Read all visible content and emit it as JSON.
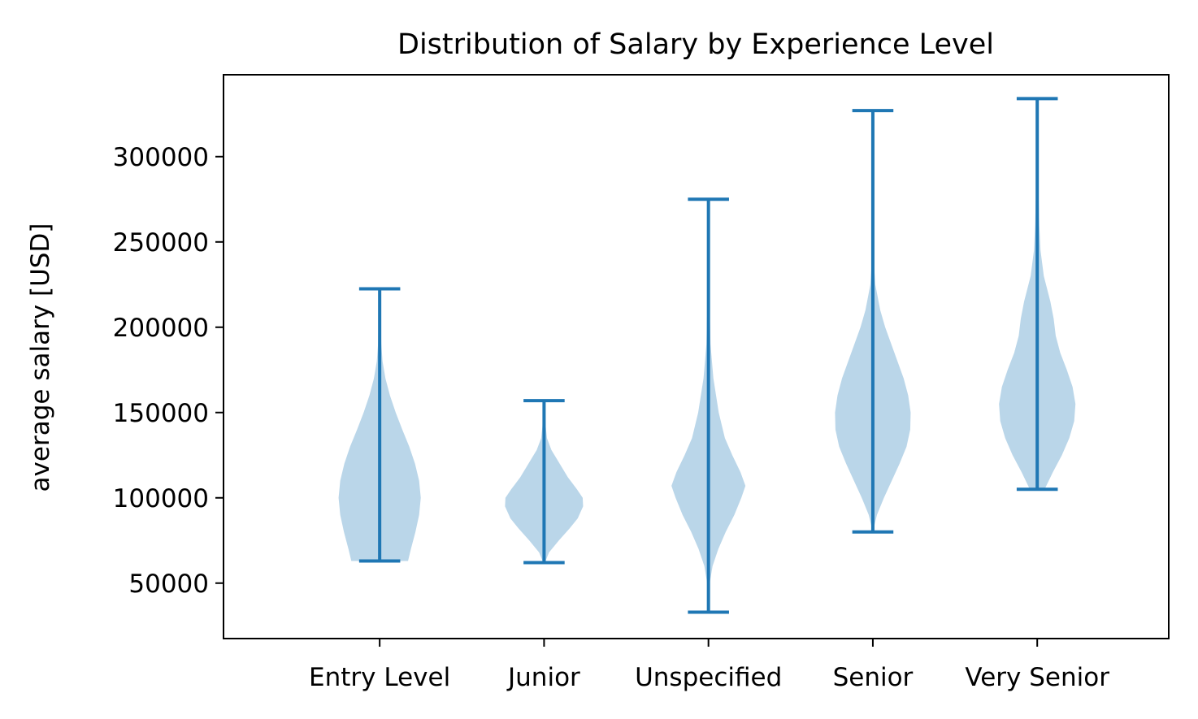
{
  "chart_data": {
    "type": "violin",
    "title": "Distribution of Salary by Experience Level",
    "xlabel": "",
    "ylabel": "average salary [USD]",
    "ylim": [
      17500,
      348000
    ],
    "yticks": [
      50000,
      100000,
      150000,
      200000,
      250000,
      300000
    ],
    "grid": false,
    "categories": [
      "Entry Level",
      "Junior",
      "Unspecified",
      "Senior",
      "Very Senior"
    ],
    "colors": {
      "body": "#bad6e9",
      "lines": "#1f77b4"
    },
    "violins": [
      {
        "category": "Entry Level",
        "min": 63000,
        "max": 222500,
        "density": [
          [
            63000,
            0.69
          ],
          [
            70000,
            0.76
          ],
          [
            80000,
            0.87
          ],
          [
            90000,
            0.96
          ],
          [
            100000,
            1.0
          ],
          [
            110000,
            0.96
          ],
          [
            120000,
            0.86
          ],
          [
            130000,
            0.72
          ],
          [
            140000,
            0.55
          ],
          [
            150000,
            0.39
          ],
          [
            160000,
            0.25
          ],
          [
            170000,
            0.14
          ],
          [
            180000,
            0.07
          ],
          [
            190000,
            0.04
          ],
          [
            200000,
            0.03
          ],
          [
            210000,
            0.03
          ],
          [
            222500,
            0.03
          ]
        ]
      },
      {
        "category": "Junior",
        "min": 62000,
        "max": 157000,
        "density": [
          [
            62000,
            0.02
          ],
          [
            68000,
            0.12
          ],
          [
            75000,
            0.36
          ],
          [
            82000,
            0.62
          ],
          [
            88000,
            0.82
          ],
          [
            95000,
            0.95
          ],
          [
            100000,
            0.94
          ],
          [
            105000,
            0.8
          ],
          [
            112000,
            0.58
          ],
          [
            120000,
            0.38
          ],
          [
            128000,
            0.18
          ],
          [
            135000,
            0.07
          ],
          [
            142000,
            0.04
          ],
          [
            150000,
            0.03
          ],
          [
            157000,
            0.03
          ]
        ]
      },
      {
        "category": "Unspecified",
        "min": 33000,
        "max": 275000,
        "density": [
          [
            33000,
            0.0
          ],
          [
            50000,
            0.03
          ],
          [
            60000,
            0.1
          ],
          [
            70000,
            0.24
          ],
          [
            80000,
            0.42
          ],
          [
            90000,
            0.63
          ],
          [
            100000,
            0.8
          ],
          [
            107000,
            0.9
          ],
          [
            115000,
            0.78
          ],
          [
            125000,
            0.58
          ],
          [
            135000,
            0.4
          ],
          [
            150000,
            0.25
          ],
          [
            170000,
            0.12
          ],
          [
            190000,
            0.05
          ],
          [
            210000,
            0.03
          ],
          [
            230000,
            0.01
          ],
          [
            250000,
            0.0
          ],
          [
            275000,
            0.0
          ]
        ]
      },
      {
        "category": "Senior",
        "min": 80000,
        "max": 327000,
        "density": [
          [
            80000,
            0.0
          ],
          [
            90000,
            0.1
          ],
          [
            100000,
            0.27
          ],
          [
            110000,
            0.46
          ],
          [
            120000,
            0.65
          ],
          [
            130000,
            0.82
          ],
          [
            140000,
            0.91
          ],
          [
            150000,
            0.92
          ],
          [
            160000,
            0.86
          ],
          [
            170000,
            0.75
          ],
          [
            180000,
            0.6
          ],
          [
            190000,
            0.45
          ],
          [
            200000,
            0.3
          ],
          [
            210000,
            0.18
          ],
          [
            225000,
            0.06
          ],
          [
            240000,
            0.02
          ],
          [
            260000,
            0.01
          ],
          [
            300000,
            0.0
          ],
          [
            327000,
            0.0
          ]
        ]
      },
      {
        "category": "Very Senior",
        "min": 105000,
        "max": 334000,
        "density": [
          [
            105000,
            0.18
          ],
          [
            115000,
            0.38
          ],
          [
            125000,
            0.6
          ],
          [
            135000,
            0.78
          ],
          [
            145000,
            0.9
          ],
          [
            155000,
            0.93
          ],
          [
            165000,
            0.86
          ],
          [
            175000,
            0.72
          ],
          [
            185000,
            0.56
          ],
          [
            195000,
            0.45
          ],
          [
            205000,
            0.4
          ],
          [
            215000,
            0.32
          ],
          [
            230000,
            0.16
          ],
          [
            245000,
            0.08
          ],
          [
            260000,
            0.05
          ],
          [
            280000,
            0.03
          ],
          [
            300000,
            0.02
          ],
          [
            334000,
            0.0
          ]
        ]
      }
    ]
  }
}
